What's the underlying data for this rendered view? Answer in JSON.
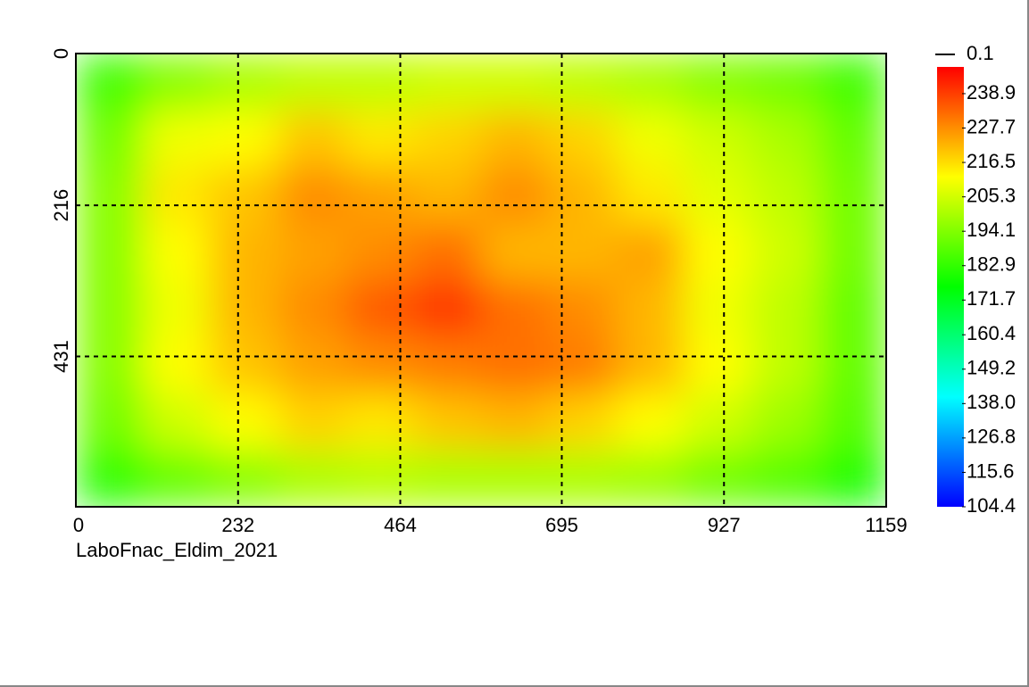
{
  "chart_data": {
    "type": "heatmap",
    "caption": "LaboFnac_Eldim_2021",
    "xlim": [
      0,
      1159
    ],
    "xticks": [
      0,
      232,
      464,
      695,
      927,
      1159
    ],
    "ylim": [
      0,
      645
    ],
    "yticks": [
      0,
      216,
      431
    ],
    "y_inverted": true,
    "grid": true,
    "z": [
      [
        185,
        195,
        200,
        203,
        203,
        205,
        205,
        203,
        200,
        195,
        192,
        185
      ],
      [
        192,
        210,
        212,
        220,
        215,
        218,
        222,
        218,
        210,
        205,
        200,
        190
      ],
      [
        195,
        215,
        220,
        228,
        225,
        222,
        228,
        222,
        215,
        208,
        203,
        192
      ],
      [
        195,
        212,
        222,
        225,
        228,
        232,
        222,
        222,
        225,
        212,
        205,
        192
      ],
      [
        195,
        210,
        222,
        228,
        235,
        240,
        232,
        228,
        222,
        210,
        203,
        190
      ],
      [
        195,
        212,
        220,
        225,
        228,
        230,
        232,
        230,
        222,
        212,
        203,
        190
      ],
      [
        192,
        205,
        212,
        218,
        215,
        220,
        222,
        218,
        212,
        205,
        198,
        188
      ],
      [
        182,
        190,
        195,
        200,
        202,
        200,
        200,
        200,
        198,
        192,
        188,
        180
      ]
    ],
    "colormap": [
      "#0000ff",
      "#00ffff",
      "#00ff00",
      "#ffff00",
      "#ff0000"
    ],
    "clim": [
      104.4,
      247.6
    ],
    "colorbar_ticks": [
      104.4,
      115.6,
      126.8,
      {
        "value": 138,
        "label": "138.0"
      },
      149.2,
      160.4,
      171.7,
      182.9,
      194.1,
      205.3,
      216.5,
      227.7,
      238.9
    ],
    "contour_step": 0.1
  }
}
